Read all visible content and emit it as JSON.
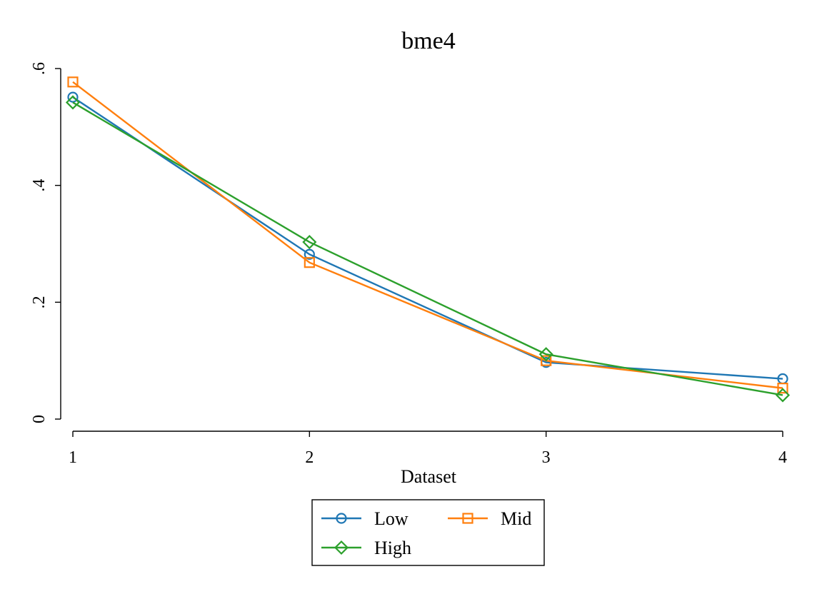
{
  "chart_data": {
    "type": "line",
    "title": "bme4",
    "xlabel": "Dataset",
    "ylabel": "",
    "x": [
      1,
      2,
      3,
      4
    ],
    "x_tick_labels": [
      "1",
      "2",
      "3",
      "4"
    ],
    "y_ticks": [
      0,
      0.2,
      0.4,
      0.6
    ],
    "y_tick_labels": [
      "0",
      ".2",
      ".4",
      ".6"
    ],
    "xlim": [
      1,
      4
    ],
    "ylim": [
      0,
      0.6
    ],
    "grid": false,
    "legend_position": "bottom",
    "series": [
      {
        "name": "Low",
        "values": [
          0.551,
          0.282,
          0.097,
          0.069
        ],
        "color": "#1f77b4",
        "marker": "circle"
      },
      {
        "name": "Mid",
        "values": [
          0.577,
          0.268,
          0.1,
          0.053
        ],
        "color": "#ff7f0e",
        "marker": "square"
      },
      {
        "name": "High",
        "values": [
          0.542,
          0.303,
          0.111,
          0.041
        ],
        "color": "#2ca02c",
        "marker": "diamond"
      }
    ]
  }
}
